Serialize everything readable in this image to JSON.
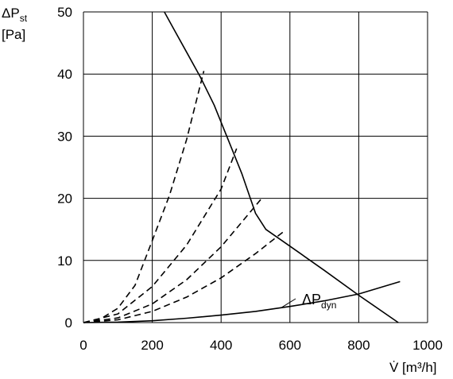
{
  "chart_data": {
    "type": "line",
    "title": "",
    "ylabel_main": "ΔP",
    "ylabel_sub": "st",
    "ylabel_unit": "[Pa]",
    "xlabel": "V̇ [m³/h]",
    "xlim": [
      0,
      1000
    ],
    "ylim": [
      0,
      50
    ],
    "x_ticks": [
      "0",
      "200",
      "400",
      "600",
      "800",
      "1000"
    ],
    "y_ticks": [
      "0",
      "10",
      "20",
      "30",
      "40",
      "50"
    ],
    "x_tick_values": [
      0,
      200,
      400,
      600,
      800,
      1000
    ],
    "y_tick_values": [
      0,
      10,
      20,
      30,
      40,
      50
    ],
    "grid": true,
    "annotations": [
      {
        "text_main": "ΔP",
        "text_sub": "dyn",
        "series_index": 0
      }
    ],
    "series": [
      {
        "style": "solid",
        "points": [
          [
            0,
            0
          ],
          [
            100,
            0.08
          ],
          [
            200,
            0.3
          ],
          [
            300,
            0.7
          ],
          [
            400,
            1.2
          ],
          [
            500,
            1.8
          ],
          [
            600,
            2.6
          ],
          [
            700,
            3.5
          ],
          [
            800,
            4.6
          ],
          [
            920,
            6.6
          ]
        ]
      },
      {
        "style": "solid",
        "points": [
          [
            235,
            50
          ],
          [
            260,
            47.5
          ],
          [
            300,
            43.5
          ],
          [
            340,
            39.5
          ],
          [
            380,
            35
          ],
          [
            420,
            29.5
          ],
          [
            460,
            24
          ],
          [
            485,
            20
          ],
          [
            500,
            17.6
          ],
          [
            530,
            15
          ],
          [
            600,
            12.3
          ],
          [
            700,
            8.4
          ],
          [
            800,
            4.4
          ],
          [
            915,
            0
          ]
        ]
      },
      {
        "style": "dashed",
        "points": [
          [
            0,
            0
          ],
          [
            50,
            0.6
          ],
          [
            100,
            2.3
          ],
          [
            150,
            6
          ],
          [
            200,
            13.2
          ],
          [
            250,
            20.5
          ],
          [
            300,
            29.5
          ],
          [
            350,
            40.5
          ]
        ]
      },
      {
        "style": "dashed",
        "points": [
          [
            0,
            0
          ],
          [
            100,
            1.4
          ],
          [
            200,
            5.8
          ],
          [
            300,
            12.5
          ],
          [
            400,
            21.5
          ],
          [
            445,
            28
          ]
        ]
      },
      {
        "style": "dashed",
        "points": [
          [
            0,
            0
          ],
          [
            100,
            0.75
          ],
          [
            200,
            3.0
          ],
          [
            300,
            6.9
          ],
          [
            400,
            12.2
          ],
          [
            515,
            19.8
          ]
        ]
      },
      {
        "style": "dashed",
        "points": [
          [
            0,
            0
          ],
          [
            100,
            0.45
          ],
          [
            200,
            1.8
          ],
          [
            300,
            4.1
          ],
          [
            400,
            7.2
          ],
          [
            500,
            11.1
          ],
          [
            585,
            14.8
          ]
        ]
      }
    ]
  }
}
